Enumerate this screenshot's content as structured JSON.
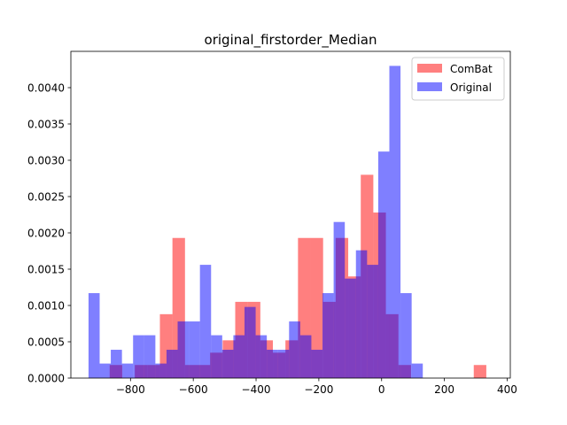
{
  "chart_data": {
    "type": "histogram",
    "title": "original_firstorder_Median",
    "xlabel": "",
    "ylabel": "",
    "xlim": [
      -990,
      410
    ],
    "ylim": [
      0,
      0.0045
    ],
    "xticks": [
      -800,
      -600,
      -400,
      -200,
      0,
      200,
      400
    ],
    "xtick_labels": [
      "−800",
      "−600",
      "−400",
      "−200",
      "0",
      "200",
      "400"
    ],
    "yticks": [
      0.0,
      0.0005,
      0.001,
      0.0015,
      0.002,
      0.0025,
      0.003,
      0.0035,
      0.004
    ],
    "ytick_labels": [
      "0.0000",
      "0.0005",
      "0.0010",
      "0.0015",
      "0.0020",
      "0.0025",
      "0.0030",
      "0.0035",
      "0.0040"
    ],
    "legend_position": "top-right",
    "grid": false,
    "series": [
      {
        "name": "ComBat",
        "color": "#ff0000",
        "alpha": 0.5,
        "bin_edges": [
          -866.4,
          -826.4,
          -786.4,
          -746.4,
          -706.4,
          -666.4,
          -626.4,
          -586.4,
          -546.4,
          -506.4,
          -466.4,
          -426.4,
          -386.4,
          -346.4,
          -306.4,
          -266.4,
          -226.4,
          -186.4,
          -146.4,
          -106.4,
          -66.4,
          -26.4,
          13.6,
          53.6,
          93.6,
          133.6,
          173.6,
          213.6,
          253.6,
          293.6,
          333.6
        ],
        "values": [
          0.00018,
          0.0,
          0.00018,
          0.00018,
          0.00088,
          0.00193,
          0.00018,
          0.00018,
          0.00035,
          0.00052,
          0.00105,
          0.00105,
          0.00052,
          0.00035,
          0.00052,
          0.00193,
          0.00193,
          0.00105,
          0.00193,
          0.0014,
          0.0028,
          0.00228,
          0.00088,
          0.00018,
          0.0,
          0.0,
          0.0,
          0.0,
          0.0,
          0.00018
        ]
      },
      {
        "name": "Original",
        "color": "#0000ff",
        "alpha": 0.5,
        "bin_edges": [
          -933.8,
          -898.3,
          -862.8,
          -827.3,
          -791.8,
          -756.3,
          -720.8,
          -685.3,
          -649.8,
          -614.3,
          -578.8,
          -543.3,
          -507.8,
          -472.3,
          -436.8,
          -401.3,
          -365.8,
          -330.3,
          -294.8,
          -259.3,
          -223.8,
          -188.3,
          -152.8,
          -117.3,
          -81.8,
          -46.3,
          -10.8,
          24.7,
          60.2,
          95.7,
          131.2
        ],
        "values": [
          0.00117,
          0.0002,
          0.00039,
          0.0002,
          0.00059,
          0.00059,
          0.0002,
          0.00039,
          0.00078,
          0.00078,
          0.00156,
          0.00059,
          0.00039,
          0.00059,
          0.00098,
          0.00059,
          0.00039,
          0.00039,
          0.00078,
          0.00059,
          0.00039,
          0.00117,
          0.00215,
          0.00137,
          0.00176,
          0.00156,
          0.00312,
          0.0043,
          0.00117,
          0.0002
        ]
      }
    ]
  }
}
